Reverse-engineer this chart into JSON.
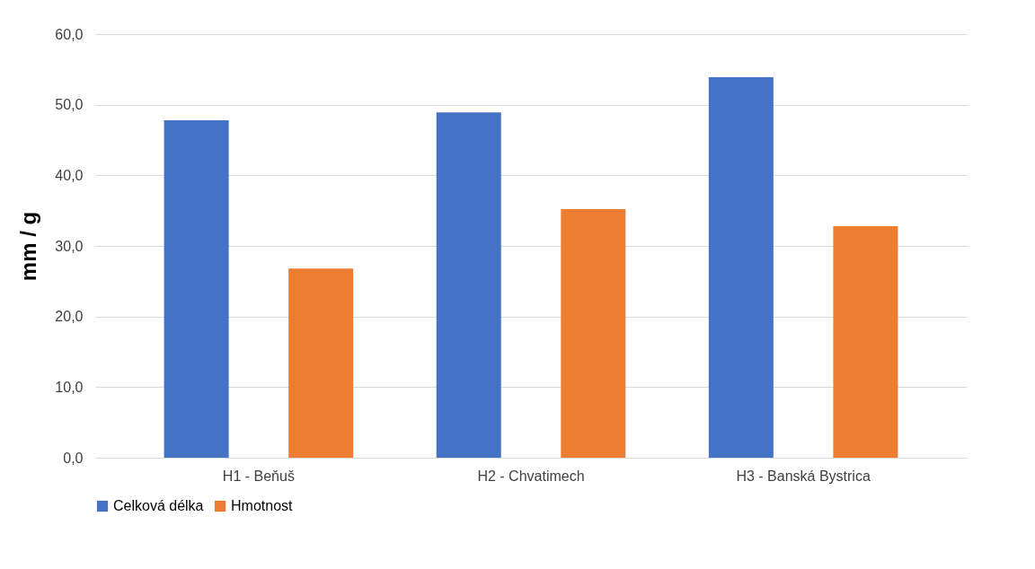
{
  "chart_data": {
    "type": "bar",
    "ylabel": "mm / g",
    "categories": [
      "H1 - Beňuš",
      "H2 - Chvatimech",
      "H3 - Banská Bystrica"
    ],
    "series": [
      {
        "name": "Celková délka",
        "color": "#4472c4",
        "values": [
          47.8,
          48.9,
          53.9
        ]
      },
      {
        "name": "Hmotnost",
        "color": "#ed7d31",
        "values": [
          26.8,
          35.2,
          32.8
        ]
      }
    ],
    "ylim": [
      0,
      60
    ],
    "yticks": [
      {
        "value": 0,
        "label": "0,0"
      },
      {
        "value": 10,
        "label": "10,0"
      },
      {
        "value": 20,
        "label": "20,0"
      },
      {
        "value": 30,
        "label": "30,0"
      },
      {
        "value": 40,
        "label": "40,0"
      },
      {
        "value": 50,
        "label": "50,0"
      },
      {
        "value": 60,
        "label": "60,0"
      }
    ],
    "grid": "y",
    "legend": "bottom"
  }
}
